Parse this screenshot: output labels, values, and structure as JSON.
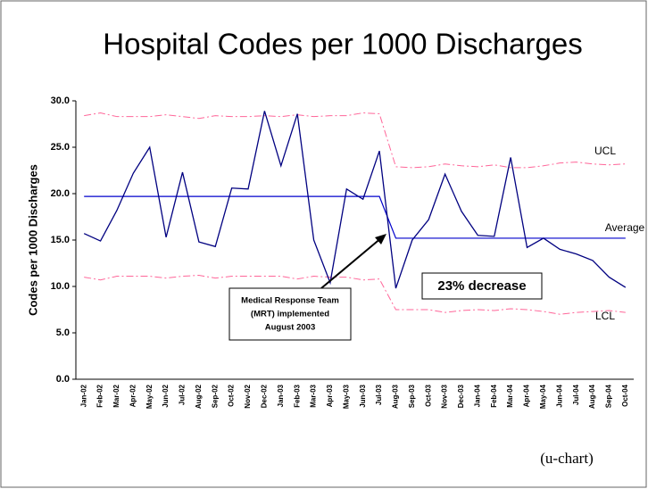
{
  "chart_data": {
    "type": "line",
    "title": "Hospital Codes per 1000 Discharges",
    "y_label": "Codes per 1000 Discharges",
    "chart_kind_note": "(u-chart)",
    "categories": [
      "Jan-02",
      "Feb-02",
      "Mar-02",
      "Apr-02",
      "May-02",
      "Jun-02",
      "Jul-02",
      "Aug-02",
      "Sep-02",
      "Oct-02",
      "Nov-02",
      "Dec-02",
      "Jan-03",
      "Feb-03",
      "Mar-03",
      "Apr-03",
      "May-03",
      "Jun-03",
      "Jul-03",
      "Aug-03",
      "Sep-03",
      "Oct-03",
      "Nov-03",
      "Dec-03",
      "Jan-04",
      "Feb-04",
      "Mar-04",
      "Apr-04",
      "May-04",
      "Jun-04",
      "Jul-04",
      "Aug-04",
      "Sep-04",
      "Oct-04"
    ],
    "values": [
      15.7,
      14.9,
      18.2,
      22.2,
      25.0,
      15.3,
      22.3,
      14.8,
      14.3,
      20.6,
      20.5,
      28.9,
      23.0,
      28.6,
      15.0,
      10.4,
      20.5,
      19.4,
      24.6,
      9.8,
      15.0,
      17.2,
      22.1,
      18.1,
      15.5,
      15.4,
      23.9,
      14.2,
      15.2,
      14.0,
      13.5,
      12.8,
      11.0,
      9.9
    ],
    "color": "#000080",
    "control_lines": [
      {
        "name": "UCL",
        "color": "#ff6699",
        "dash": true,
        "values": [
          28.4,
          28.7,
          28.3,
          28.3,
          28.3,
          28.5,
          28.3,
          28.1,
          28.4,
          28.3,
          28.3,
          28.4,
          28.3,
          28.5,
          28.3,
          28.4,
          28.4,
          28.7,
          28.6,
          22.9,
          22.8,
          22.9,
          23.2,
          23.0,
          22.9,
          23.1,
          22.8,
          22.8,
          23.0,
          23.3,
          23.4,
          23.2,
          23.1,
          23.2
        ]
      },
      {
        "name": "Average",
        "color": "#0000cc",
        "dash": false,
        "values": [
          19.7,
          19.7,
          19.7,
          19.7,
          19.7,
          19.7,
          19.7,
          19.7,
          19.7,
          19.7,
          19.7,
          19.7,
          19.7,
          19.7,
          19.7,
          19.7,
          19.7,
          19.7,
          19.7,
          15.2,
          15.2,
          15.2,
          15.2,
          15.2,
          15.2,
          15.2,
          15.2,
          15.2,
          15.2,
          15.2,
          15.2,
          15.2,
          15.2,
          15.2
        ]
      },
      {
        "name": "LCL",
        "color": "#ff6699",
        "dash": true,
        "values": [
          11.0,
          10.7,
          11.1,
          11.1,
          11.1,
          10.9,
          11.1,
          11.2,
          10.9,
          11.1,
          11.1,
          11.1,
          11.1,
          10.8,
          11.1,
          11.0,
          11.0,
          10.7,
          10.8,
          7.5,
          7.5,
          7.5,
          7.2,
          7.4,
          7.5,
          7.4,
          7.6,
          7.5,
          7.3,
          7.0,
          7.2,
          7.3,
          7.4,
          7.2
        ]
      }
    ],
    "annotations": {
      "decrease": "23% decrease",
      "mrt": [
        "Medical Response Team",
        "(MRT) implemented",
        "August 2003"
      ]
    },
    "ylim": [
      0,
      30
    ],
    "yticks": [
      {
        "value": 0,
        "label": "0.0"
      },
      {
        "value": 5,
        "label": "5.0"
      },
      {
        "value": 10,
        "label": "10.0"
      },
      {
        "value": 15,
        "label": "15.0"
      },
      {
        "value": 20,
        "label": "20.0"
      },
      {
        "value": 25,
        "label": "25.0"
      },
      {
        "value": 30,
        "label": "30.0"
      }
    ]
  }
}
